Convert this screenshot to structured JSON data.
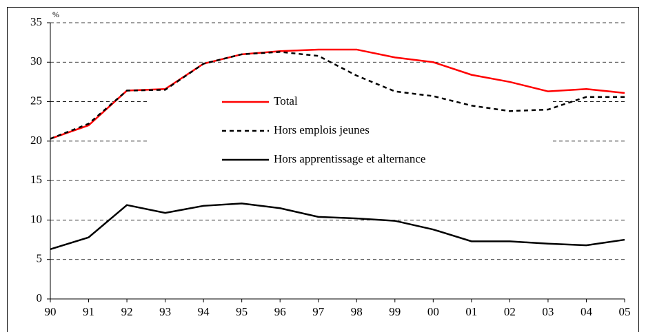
{
  "chart_data": {
    "type": "line",
    "y_label": "%",
    "categories": [
      "90",
      "91",
      "92",
      "93",
      "94",
      "95",
      "96",
      "97",
      "98",
      "99",
      "00",
      "01",
      "02",
      "03",
      "04",
      "05"
    ],
    "series": [
      {
        "name": "Total",
        "color": "#ff0000",
        "dash": "solid",
        "values": [
          20.3,
          22.0,
          26.4,
          26.6,
          29.8,
          31.0,
          31.4,
          31.6,
          31.6,
          30.6,
          30.0,
          28.4,
          27.5,
          26.3,
          26.6,
          26.1
        ]
      },
      {
        "name": "Hors emplois jeunes",
        "color": "#000000",
        "dash": "dotted",
        "values": [
          20.3,
          22.2,
          26.4,
          26.5,
          29.8,
          31.0,
          31.3,
          30.8,
          28.3,
          26.3,
          25.7,
          24.5,
          23.8,
          24.0,
          25.6,
          25.6
        ]
      },
      {
        "name": "Hors apprentissage et alternance",
        "color": "#000000",
        "dash": "solid",
        "values": [
          6.3,
          7.8,
          11.9,
          10.9,
          11.8,
          12.1,
          11.5,
          10.4,
          10.2,
          9.9,
          8.8,
          7.3,
          7.3,
          7.0,
          6.8,
          7.5
        ]
      }
    ],
    "ylim": [
      0,
      35
    ],
    "yticks": [
      0,
      5,
      10,
      15,
      20,
      25,
      30,
      35
    ],
    "grid": true
  }
}
